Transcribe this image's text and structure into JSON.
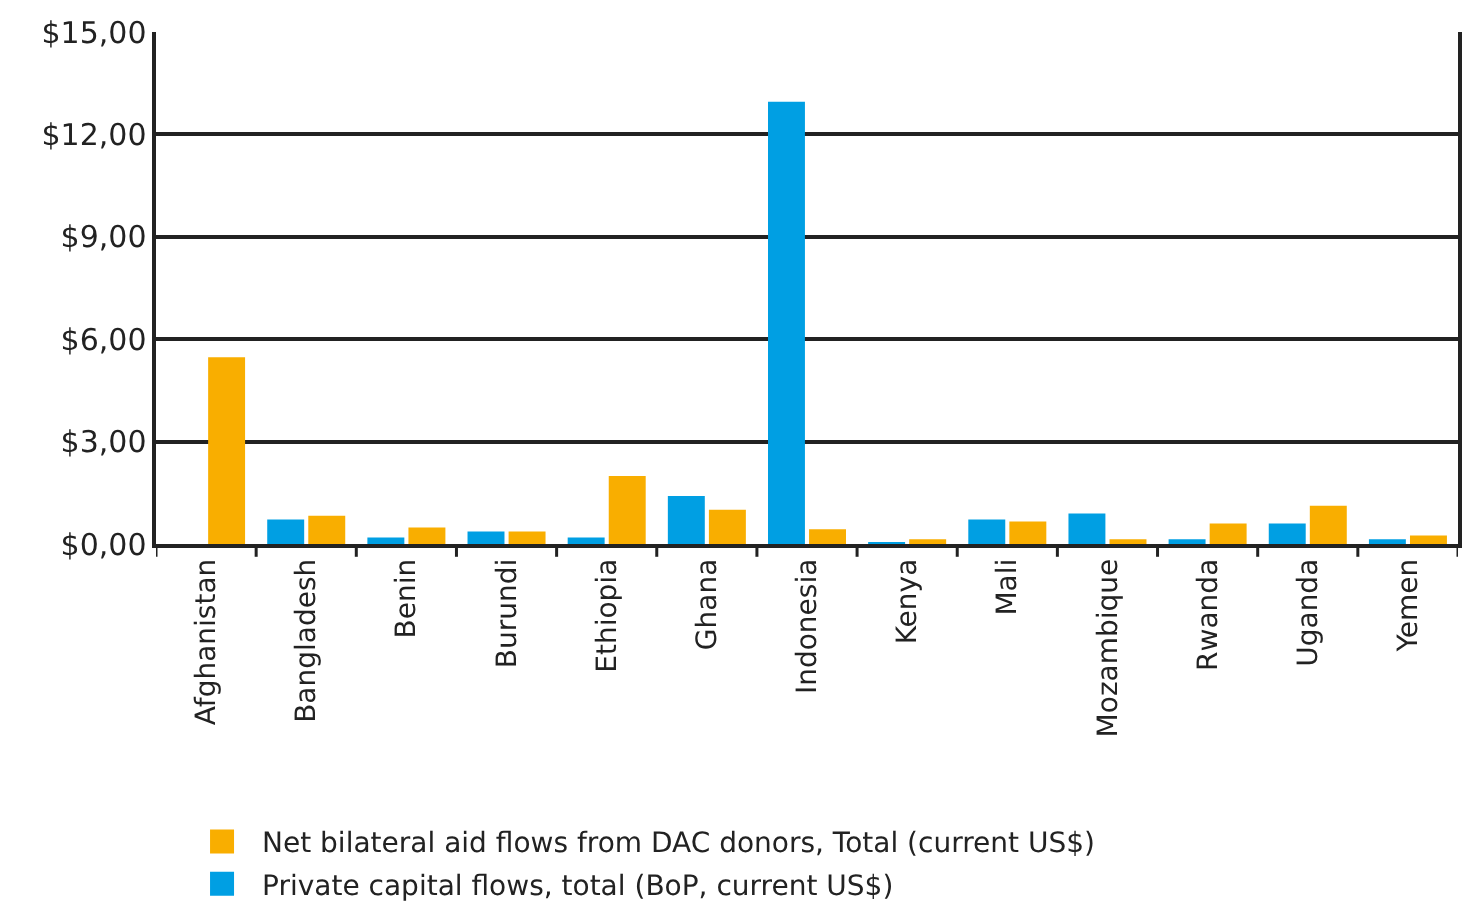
{
  "chart_data": {
    "type": "bar",
    "categories": [
      "Afghanistan",
      "Bangladesh",
      "Benin",
      "Burundi",
      "Ethiopia",
      "Ghana",
      "Indonesia",
      "Kenya",
      "Mali",
      "Mozambique",
      "Rwanda",
      "Uganda",
      "Yemen"
    ],
    "series": [
      {
        "name": "Private capital flows, total (BoP, current US$)",
        "color": "#009fe3",
        "values": [
          0,
          0.72,
          0.19,
          0.37,
          0.19,
          1.41,
          12.96,
          0.04,
          0.72,
          0.89,
          0.14,
          0.6,
          0.14
        ]
      },
      {
        "name": "Net bilateral aid flows from DAC donors, Total (current US$)",
        "color": "#f9ae00",
        "values": [
          5.47,
          0.83,
          0.48,
          0.37,
          1.99,
          1.0,
          0.43,
          0.14,
          0.66,
          0.14,
          0.6,
          1.12,
          0.25
        ]
      }
    ],
    "ylim": [
      0,
      15
    ],
    "yticks": [
      {
        "value": 0,
        "label": "$0,00"
      },
      {
        "value": 3,
        "label": "$3,00"
      },
      {
        "value": 6,
        "label": "$6,00"
      },
      {
        "value": 9,
        "label": "$9,00"
      },
      {
        "value": 12,
        "label": "$12,00"
      },
      {
        "value": 15,
        "label": "$15,00"
      }
    ],
    "grid": "y",
    "legend": "bottom"
  }
}
